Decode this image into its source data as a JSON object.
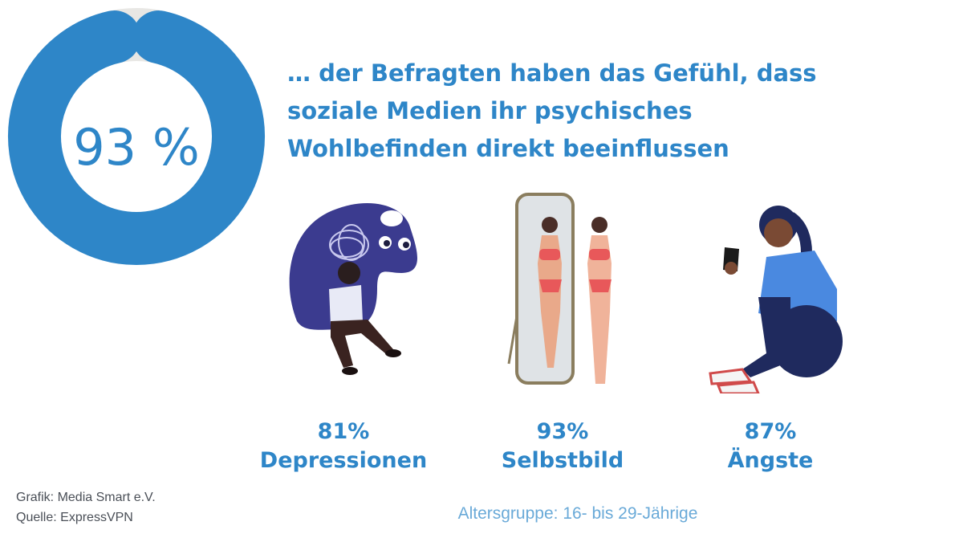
{
  "chart_data": {
    "type": "pie",
    "variant": "donut",
    "value_label": "93 %",
    "slices": [
      {
        "label": "",
        "value": 93,
        "color": "#2e86c8"
      },
      {
        "label": "",
        "value": 7,
        "color": "#e8e7e4"
      }
    ]
  },
  "headline": {
    "line1": "… der Befragten haben das Gefühl, dass",
    "line2": "soziale Medien ihr psychisches",
    "line3": "Wohlbefinden direkt beeinflussen"
  },
  "stats": [
    {
      "value": "81%",
      "label": "Depressionen",
      "icon": "depression-illustration"
    },
    {
      "value": "93%",
      "label": "Selbstbild",
      "icon": "self-image-mirror-illustration"
    },
    {
      "value": "87%",
      "label": "Ängste",
      "icon": "anxiety-illustration"
    }
  ],
  "credits": {
    "grafik": "Grafik: Media Smart e.V.",
    "quelle": "Quelle: ExpressVPN"
  },
  "footnote": "Altersgruppe: 16- bis 29-Jährige",
  "colors": {
    "accent": "#2e86c8",
    "track": "#e8e7e4",
    "footnote": "#6aaad8",
    "text": "#4a4f57"
  }
}
